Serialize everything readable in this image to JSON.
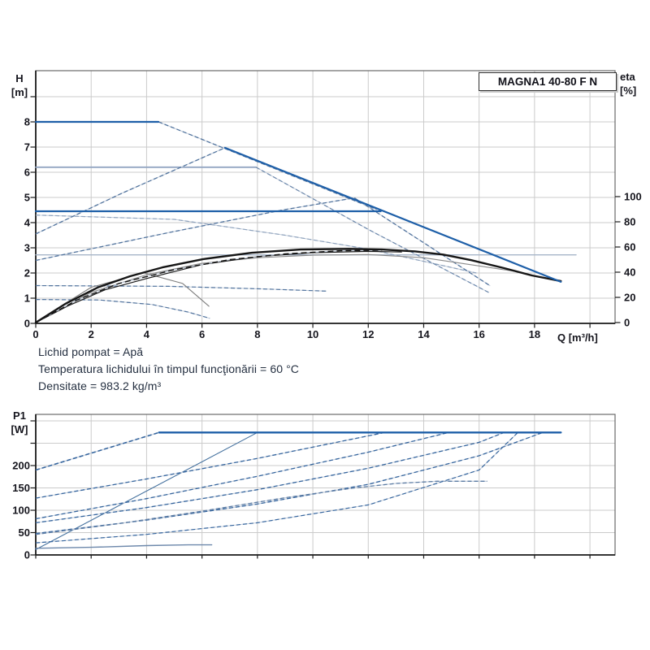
{
  "title_box": {
    "label": "MAGNA1 40-80 F N"
  },
  "info": {
    "lines": [
      "Lichid pompat = Apă",
      "Temperatura lichidului în timpul funcţionării = 60 °C",
      "Densitate = 983.2 kg/m³"
    ]
  },
  "colors": {
    "curve_blue_solid": "#1e5fa8",
    "curve_blue_dash": "#35659e",
    "curve_gray_blue": "#93a6c2",
    "curve_black": "#161616",
    "grid": "#cbcbcb",
    "border": "#6a6a6a",
    "axis": "#1c1c1c",
    "text": "#15151d",
    "info_text": "#253041",
    "dash_underlay": "#c3cddb"
  },
  "chart_data": [
    {
      "type": "line",
      "title": "MAGNA1 40-80 F N",
      "grid": true,
      "x_axis": {
        "label": "Q [m³/h]",
        "ticks": [
          0,
          2,
          4,
          6,
          8,
          10,
          12,
          14,
          16,
          18
        ],
        "tick_marks": [
          0,
          2,
          4,
          6,
          8,
          10,
          12,
          14,
          16,
          18,
          20
        ],
        "range": [
          0,
          20.9
        ]
      },
      "y_left": {
        "label": "H [m]",
        "label_lines": [
          "H",
          "[m]"
        ],
        "ticks": [
          0,
          1,
          2,
          3,
          4,
          5,
          6,
          7,
          8
        ],
        "tick_marks": [
          0,
          1,
          2,
          3,
          4,
          5,
          6,
          7,
          8,
          9
        ],
        "range": [
          0,
          10
        ]
      },
      "y_right": {
        "label": "eta [%]",
        "label_lines": [
          "eta",
          "[%]"
        ],
        "ticks": [
          0,
          20,
          40,
          60,
          80,
          100
        ],
        "range": [
          0,
          130
        ]
      },
      "series": [
        {
          "id": "const-pressure-2.7",
          "axis": "H",
          "style": "solid",
          "w": 1.4,
          "c": "#a6b5c9",
          "pts": [
            [
              0,
              2.72
            ],
            [
              19.5,
              2.72
            ]
          ]
        },
        {
          "id": "const-pressure-6.2",
          "axis": "H",
          "style": "solid",
          "w": 1.8,
          "c": "#93a6c2",
          "pts": [
            [
              0,
              6.2
            ],
            [
              7.95,
              6.2
            ]
          ]
        },
        {
          "id": "sag-curve-4.3",
          "axis": "H",
          "style": "dash",
          "w": 1.2,
          "c": "#8fa3bd",
          "pts": [
            [
              0,
              4.3
            ],
            [
              5,
              4.13
            ],
            [
              9,
              3.5
            ],
            [
              12,
              2.95
            ],
            [
              15.9,
              2.0
            ]
          ]
        },
        {
          "id": "descent-from-6.2",
          "axis": "H",
          "style": "dash",
          "w": 1.2,
          "c": "#6b87ab",
          "pts": [
            [
              7.95,
              6.2
            ],
            [
              12.05,
              3.7
            ],
            [
              16.36,
              1.22
            ]
          ]
        },
        {
          "id": "max-curve-dashed-segment",
          "axis": "H",
          "style": "dash",
          "w": 1.3,
          "c": "#52749e",
          "pts": [
            [
              4.43,
              8
            ],
            [
              12.3,
              4.52
            ]
          ]
        },
        {
          "id": "prop-pressure-rise-1",
          "axis": "H",
          "style": "dash",
          "w": 1.3,
          "c": "#52749e",
          "pts": [
            [
              0,
              3.55
            ],
            [
              3.1,
              5.16
            ],
            [
              6.83,
              6.97
            ]
          ]
        },
        {
          "id": "prop-pressure-rise-2",
          "axis": "H",
          "style": "dash",
          "w": 1.3,
          "c": "#52749e",
          "pts": [
            [
              0,
              2.5
            ],
            [
              4.78,
              3.6
            ],
            [
              8.9,
              4.5
            ],
            [
              11.5,
              4.98
            ]
          ]
        },
        {
          "id": "prop-pressure-2-descent",
          "axis": "H",
          "style": "dash",
          "w": 1.3,
          "c": "#52749e",
          "pts": [
            [
              11.5,
              4.98
            ],
            [
              14,
              3.2
            ],
            [
              16.4,
              1.49
            ]
          ]
        },
        {
          "id": "low-curve-1.5",
          "axis": "H",
          "style": "dash",
          "w": 1.2,
          "c": "#52749e",
          "pts": [
            [
              0,
              1.5
            ],
            [
              4.8,
              1.47
            ],
            [
              8.1,
              1.37
            ],
            [
              10.5,
              1.28
            ]
          ]
        },
        {
          "id": "low-curve-0.95",
          "axis": "H",
          "style": "dash",
          "w": 1.2,
          "c": "#52749e",
          "pts": [
            [
              0,
              0.95
            ],
            [
              2.3,
              0.93
            ],
            [
              4.2,
              0.75
            ],
            [
              5.5,
              0.45
            ],
            [
              6.28,
              0.2
            ]
          ]
        },
        {
          "id": "eta-curve-gray",
          "axis": "eta",
          "style": "solid",
          "w": 1.1,
          "c": "#8a8a8a",
          "pts": [
            [
              0,
              0
            ],
            [
              2,
              24
            ],
            [
              4,
              38
            ],
            [
              6,
              47
            ],
            [
              8,
              51.5
            ],
            [
              10,
              53.5
            ],
            [
              12,
              54
            ],
            [
              14,
              51.5
            ],
            [
              16,
              45
            ],
            [
              17.5,
              40
            ],
            [
              18.9,
              32.5
            ]
          ]
        },
        {
          "id": "eta-hook-gray",
          "axis": "eta",
          "style": "solid",
          "w": 1.1,
          "c": "#7d7d7d",
          "pts": [
            [
              0.3,
              4
            ],
            [
              1.2,
              17
            ],
            [
              2,
              28
            ],
            [
              3.9,
              39.5
            ],
            [
              5.3,
              31
            ],
            [
              6.25,
              13
            ]
          ]
        },
        {
          "id": "eta-curve-2",
          "axis": "eta",
          "style": "solid",
          "w": 1.2,
          "c": "#1b1b1b",
          "pts": [
            [
              0,
              0
            ],
            [
              1.2,
              13.6
            ],
            [
              2.5,
              26
            ],
            [
              4,
              35
            ],
            [
              6,
              46
            ],
            [
              8,
              52.4
            ],
            [
              10,
              55.5
            ],
            [
              12,
              56.5
            ],
            [
              13.2,
              56
            ]
          ]
        },
        {
          "id": "eta-curve-3",
          "axis": "eta",
          "style": "dash",
          "w": 1.4,
          "c": "#111111",
          "dashpat": "7,4",
          "pts": [
            [
              0,
              0
            ],
            [
              1.5,
              18
            ],
            [
              3,
              31
            ],
            [
              5,
              42
            ],
            [
              7,
              50
            ],
            [
              9,
              54.5
            ],
            [
              11,
              57
            ],
            [
              12.5,
              57.5
            ]
          ]
        },
        {
          "id": "eta-curve-main",
          "axis": "eta",
          "style": "solid",
          "w": 2.4,
          "c": "#161616",
          "pts": [
            [
              0,
              0
            ],
            [
              1.06,
              14.8
            ],
            [
              2.23,
              27.8
            ],
            [
              3.4,
              36.8
            ],
            [
              4.57,
              43.8
            ],
            [
              6.04,
              50.4
            ],
            [
              7.8,
              55.4
            ],
            [
              9.56,
              58
            ],
            [
              11.3,
              58.5
            ],
            [
              12.5,
              58
            ],
            [
              13.7,
              56.5
            ],
            [
              14.7,
              54
            ],
            [
              15.7,
              49.6
            ],
            [
              16.9,
              43.2
            ],
            [
              17.9,
              37.4
            ],
            [
              18.95,
              33
            ]
          ]
        },
        {
          "id": "max-head-flat-8",
          "axis": "H",
          "style": "solid",
          "w": 2.2,
          "c": "#1e5fa8",
          "pts": [
            [
              0,
              8
            ],
            [
              4.43,
              8
            ]
          ]
        },
        {
          "id": "max-curve-solid",
          "axis": "H",
          "style": "solid",
          "w": 2.2,
          "c": "#1e5fa8",
          "pts": [
            [
              6.83,
              6.97
            ],
            [
              18.95,
              1.65
            ]
          ]
        },
        {
          "id": "const-pressure-4.5",
          "axis": "H",
          "style": "solid",
          "w": 2.2,
          "c": "#1e5fa8",
          "pts": [
            [
              0,
              4.45
            ],
            [
              12.45,
              4.45
            ]
          ]
        }
      ]
    },
    {
      "type": "line",
      "title": "P1 power curves",
      "grid": true,
      "x_axis": {
        "label": "Q [m³/h]",
        "ticks": [],
        "tick_marks": [
          0,
          2,
          4,
          6,
          8,
          10,
          12,
          14,
          16,
          18,
          20
        ],
        "range": [
          0,
          20.9
        ]
      },
      "y_left": {
        "label": "P1 [W]",
        "label_lines": [
          "P1",
          "[W]"
        ],
        "ticks": [
          0,
          50,
          100,
          150,
          200
        ],
        "tick_marks": [
          0,
          50,
          100,
          150,
          200,
          250,
          300
        ],
        "range": [
          0,
          314
        ]
      },
      "series": [
        {
          "id": "p1-max-rise",
          "axis": "P",
          "style": "dash",
          "w": 1.6,
          "c": "#35659e",
          "pts": [
            [
              0,
              190
            ],
            [
              4.45,
              274
            ]
          ]
        },
        {
          "id": "p1-steep-line",
          "axis": "P",
          "style": "solid",
          "w": 1.1,
          "c": "#46729f",
          "pts": [
            [
              0,
              12
            ],
            [
              8.0,
              274
            ]
          ]
        },
        {
          "id": "p1-curve-127",
          "axis": "P",
          "style": "dash",
          "w": 1.3,
          "c": "#35659e",
          "pts": [
            [
              0,
              127
            ],
            [
              4,
              170
            ],
            [
              8,
              216
            ],
            [
              12.6,
              274
            ]
          ]
        },
        {
          "id": "p1-curve-81",
          "axis": "P",
          "style": "dash",
          "w": 1.3,
          "c": "#35659e",
          "pts": [
            [
              0,
              81
            ],
            [
              4,
              126
            ],
            [
              8,
              176
            ],
            [
              12,
              230
            ],
            [
              14.9,
              274
            ]
          ]
        },
        {
          "id": "p1-curve-72",
          "axis": "P",
          "style": "dash",
          "w": 1.3,
          "c": "#35659e",
          "pts": [
            [
              0,
              72
            ],
            [
              4,
              106
            ],
            [
              8,
              146
            ],
            [
              12,
              194
            ],
            [
              16,
              252
            ],
            [
              16.9,
              274
            ]
          ]
        },
        {
          "id": "p1-curve-48",
          "axis": "P",
          "style": "dash",
          "w": 1.3,
          "c": "#35659e",
          "pts": [
            [
              0,
              48
            ],
            [
              4,
              78
            ],
            [
              8,
              114
            ],
            [
              12,
              158
            ],
            [
              16,
              222
            ],
            [
              18.3,
              274
            ]
          ]
        },
        {
          "id": "p1-curve-flat-165",
          "axis": "P",
          "style": "dash",
          "w": 1.3,
          "c": "#5b7ba3",
          "pts": [
            [
              0,
              46
            ],
            [
              3,
              70
            ],
            [
              6,
              98
            ],
            [
              9,
              128
            ],
            [
              11.5,
              150
            ],
            [
              13,
              160
            ],
            [
              14.5,
              165
            ],
            [
              16.3,
              165
            ]
          ]
        },
        {
          "id": "p1-curve-27",
          "axis": "P",
          "style": "dash",
          "w": 1.2,
          "c": "#35659e",
          "pts": [
            [
              0,
              27
            ],
            [
              4,
              46
            ],
            [
              8,
              72
            ],
            [
              12,
              112
            ],
            [
              16,
              190
            ],
            [
              17.4,
              274
            ]
          ]
        },
        {
          "id": "p1-low-flat-23",
          "axis": "P",
          "style": "solid",
          "w": 1.4,
          "c": "#6d88ab",
          "pts": [
            [
              0,
              15
            ],
            [
              2,
              17
            ],
            [
              4,
              21
            ],
            [
              5.5,
              22.5
            ],
            [
              6.35,
              22.5
            ]
          ]
        },
        {
          "id": "p1-max-limit",
          "axis": "P",
          "style": "solid",
          "w": 2.4,
          "c": "#1e5fa8",
          "pts": [
            [
              4.45,
              274
            ],
            [
              18.95,
              274
            ]
          ]
        }
      ]
    }
  ]
}
